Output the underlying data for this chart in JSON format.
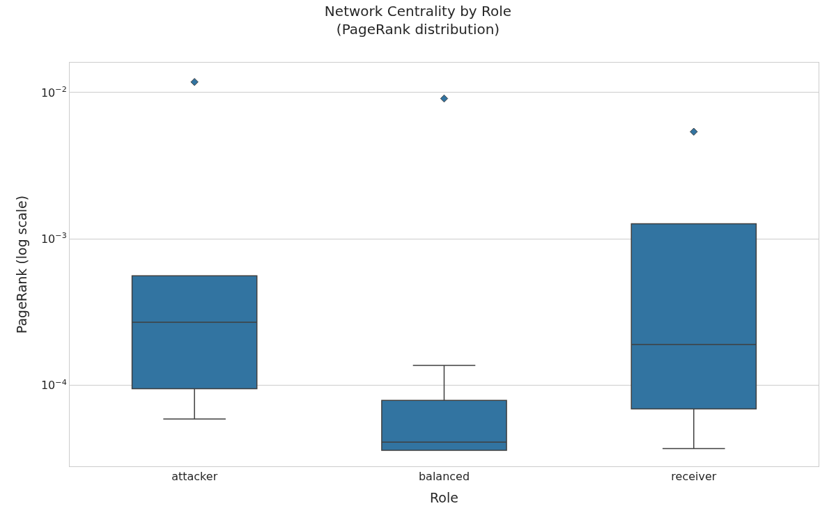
{
  "chart_data": {
    "type": "box",
    "title": "Network Centrality by Role\n(PageRank distribution)",
    "xlabel": "Role",
    "ylabel": "PageRank (log scale)",
    "categories": [
      "attacker",
      "balanced",
      "receiver"
    ],
    "color": "#3274a1",
    "boxes": [
      {
        "low": 5.9e-05,
        "q1": 9.5e-05,
        "median": 0.00027,
        "q3": 0.00056,
        "high": 0.00056,
        "outliers": [
          0.0118
        ]
      },
      {
        "low": 3.6e-05,
        "q1": 3.6e-05,
        "median": 4.1e-05,
        "q3": 7.9e-05,
        "high": 0.000137,
        "outliers": [
          0.0091
        ]
      },
      {
        "low": 3.7e-05,
        "q1": 6.9e-05,
        "median": 0.00019,
        "q3": 0.00127,
        "high": 0.00127,
        "outliers": [
          0.0054
        ]
      }
    ],
    "log": "y",
    "ylim": [
      2.8e-05,
      0.016
    ],
    "yticks": [
      {
        "value": 0.0001,
        "label": "10$^{−4}$"
      },
      {
        "value": 0.001,
        "label": "10$^{−3}$"
      },
      {
        "value": 0.01,
        "label": "10$^{−2}$"
      }
    ],
    "grid": "y"
  }
}
